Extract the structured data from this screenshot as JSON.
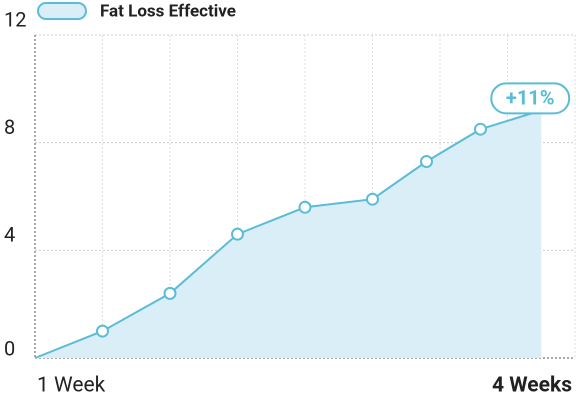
{
  "chart_data": {
    "type": "area",
    "legend": "Fat Loss Effective",
    "color": "#5bbcd6",
    "fill": "#d9eef6",
    "x": [
      0,
      1,
      2,
      3,
      4,
      5,
      5.8,
      6.6,
      7.5
    ],
    "values": [
      0,
      1,
      2.4,
      4.6,
      5.6,
      5.9,
      7.3,
      8.5,
      9.2
    ],
    "xlim": [
      0,
      8
    ],
    "xticks": [
      1,
      2,
      3,
      4,
      5,
      6,
      7,
      8
    ],
    "ylim": [
      0,
      12
    ],
    "yticks": [
      0,
      4,
      8,
      12
    ],
    "x_labels": [
      "1 Week",
      "4 Weeks"
    ],
    "annotation": "+11%",
    "grid": true
  }
}
